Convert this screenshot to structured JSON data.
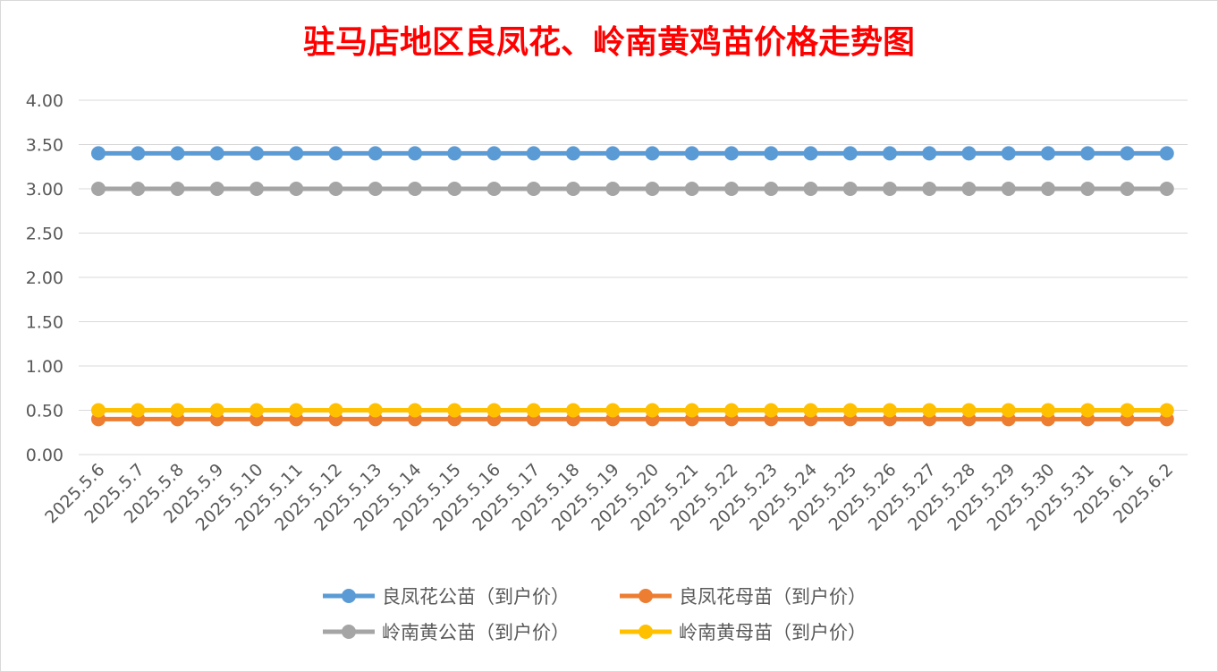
{
  "chart_data": {
    "type": "line",
    "title": "驻马店地区良凤花、岭南黄鸡苗价格走势图",
    "categories": [
      "2025.5.6",
      "2025.5.7",
      "2025.5.8",
      "2025.5.9",
      "2025.5.10",
      "2025.5.11",
      "2025.5.12",
      "2025.5.13",
      "2025.5.14",
      "2025.5.15",
      "2025.5.16",
      "2025.5.17",
      "2025.5.18",
      "2025.5.19",
      "2025.5.20",
      "2025.5.21",
      "2025.5.22",
      "2025.5.23",
      "2025.5.24",
      "2025.5.25",
      "2025.5.26",
      "2025.5.27",
      "2025.5.28",
      "2025.5.29",
      "2025.5.30",
      "2025.5.31",
      "2025.6.1",
      "2025.6.2"
    ],
    "ylim": [
      0,
      4
    ],
    "yticks": [
      "0.00",
      "0.50",
      "1.00",
      "1.50",
      "2.00",
      "2.50",
      "3.00",
      "3.50",
      "4.00"
    ],
    "grid": true,
    "legend_position": "bottom",
    "series": [
      {
        "name": "良凤花公苗（到户价）",
        "color": "#5b9bd5",
        "values": [
          3.4,
          3.4,
          3.4,
          3.4,
          3.4,
          3.4,
          3.4,
          3.4,
          3.4,
          3.4,
          3.4,
          3.4,
          3.4,
          3.4,
          3.4,
          3.4,
          3.4,
          3.4,
          3.4,
          3.4,
          3.4,
          3.4,
          3.4,
          3.4,
          3.4,
          3.4,
          3.4,
          3.4
        ]
      },
      {
        "name": "良凤花母苗（到户价）",
        "color": "#ed7d31",
        "values": [
          0.4,
          0.4,
          0.4,
          0.4,
          0.4,
          0.4,
          0.4,
          0.4,
          0.4,
          0.4,
          0.4,
          0.4,
          0.4,
          0.4,
          0.4,
          0.4,
          0.4,
          0.4,
          0.4,
          0.4,
          0.4,
          0.4,
          0.4,
          0.4,
          0.4,
          0.4,
          0.4,
          0.4
        ]
      },
      {
        "name": "岭南黄公苗（到户价）",
        "color": "#a5a5a5",
        "values": [
          3.0,
          3.0,
          3.0,
          3.0,
          3.0,
          3.0,
          3.0,
          3.0,
          3.0,
          3.0,
          3.0,
          3.0,
          3.0,
          3.0,
          3.0,
          3.0,
          3.0,
          3.0,
          3.0,
          3.0,
          3.0,
          3.0,
          3.0,
          3.0,
          3.0,
          3.0,
          3.0,
          3.0
        ]
      },
      {
        "name": "岭南黄母苗（到户价）",
        "color": "#ffc000",
        "values": [
          0.5,
          0.5,
          0.5,
          0.5,
          0.5,
          0.5,
          0.5,
          0.5,
          0.5,
          0.5,
          0.5,
          0.5,
          0.5,
          0.5,
          0.5,
          0.5,
          0.5,
          0.5,
          0.5,
          0.5,
          0.5,
          0.5,
          0.5,
          0.5,
          0.5,
          0.5,
          0.5,
          0.5
        ]
      }
    ]
  }
}
